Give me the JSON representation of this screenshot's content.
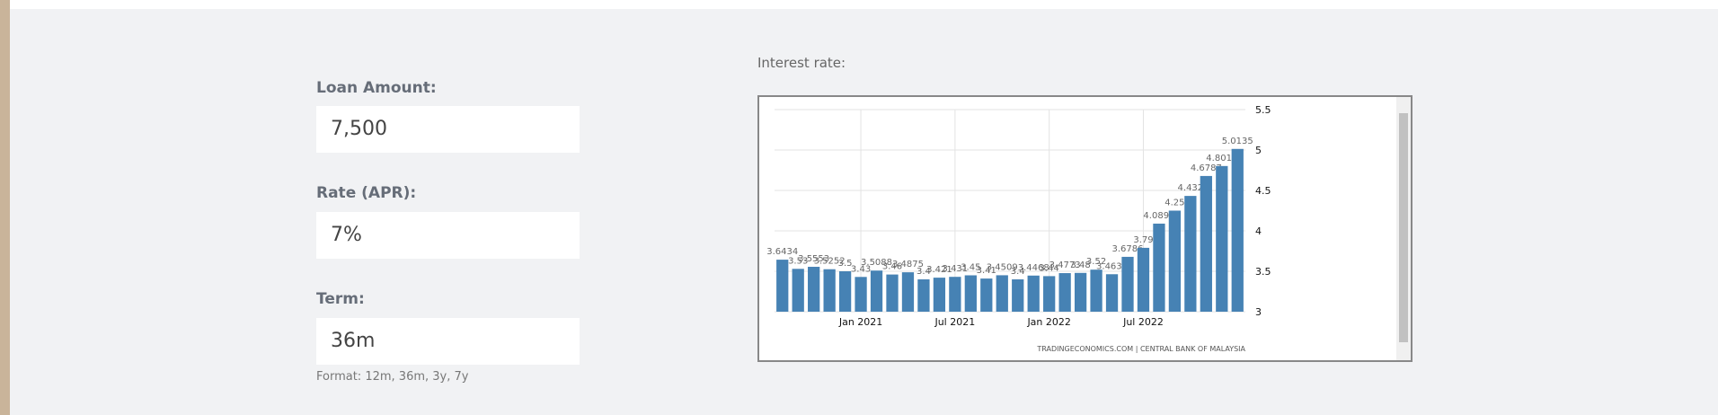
{
  "form": {
    "fields": [
      {
        "label": "Loan Amount:",
        "value": "7,500"
      },
      {
        "label": "Rate (APR):",
        "value": "7%"
      },
      {
        "label": "Term:",
        "value": "36m"
      }
    ],
    "format_note": "Format: 12m, 36m, 3y, 7y",
    "chart_label": "Interest rate:"
  },
  "chart_data": {
    "type": "bar",
    "source": "TRADINGECONOMICS.COM  |  CENTRAL BANK OF MALAYSIA",
    "categories": [
      null,
      null,
      null,
      null,
      null,
      "Jan 2021",
      null,
      null,
      null,
      null,
      null,
      "Jul 2021",
      null,
      null,
      null,
      null,
      null,
      "Jan 2022",
      null,
      null,
      null,
      null,
      null,
      "Jul 2022",
      null,
      null,
      null,
      null,
      null,
      null
    ],
    "values": [
      3.6434,
      3.53,
      3.5553,
      3.5252,
      3.5,
      3.43,
      3.5088,
      3.46,
      3.4875,
      3.4,
      3.421,
      3.431,
      3.45,
      3.41,
      3.4509,
      3.4,
      3.4468,
      3.44,
      3.4773,
      3.48,
      3.52,
      3.4636,
      3.6786,
      3.79,
      4.0895,
      4.25,
      4.432,
      4.6787,
      4.8019,
      5.0135
    ],
    "color": "#4682b4",
    "ylim": [
      3,
      5.5
    ],
    "yticks": [
      3,
      3.5,
      4,
      4.5,
      5,
      5.5
    ],
    "grid": true
  }
}
